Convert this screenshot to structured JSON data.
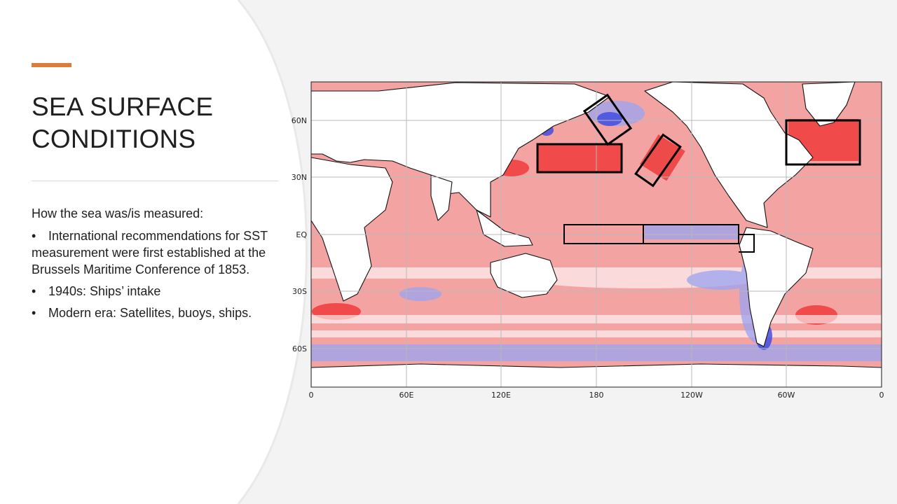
{
  "slide": {
    "title_lines": [
      "SEA SURFACE",
      "CONDITIONS"
    ],
    "intro": "How the sea was/is measured:",
    "bullets": [
      "International recommendations for SST measurement were first established at the Brussels Maritime Conference of 1853.",
      "1940s: Ships’ intake",
      "Modern era: Satellites, buoys, ships."
    ],
    "bullet_symbol": "•",
    "accent_color": "#de7c3a"
  },
  "map": {
    "y_axis_labels": [
      "60N",
      "30N",
      "EQ",
      "30S",
      "60S"
    ],
    "x_axis_labels": [
      "0",
      "60E",
      "120E",
      "180",
      "120W",
      "60W",
      "0"
    ],
    "colors": {
      "warm": "#f4a3a3",
      "warm_strong": "#ef3b3b",
      "cool": "#9aa4f2",
      "cool_strong": "#3b48e0",
      "land": "#ffffff",
      "grid": "#b8b8b8"
    },
    "highlight_boxes": [
      "north-pacific-warm-box",
      "bering-sea-box",
      "gulf-of-alaska-box",
      "north-atlantic-box",
      "nino-equatorial-box"
    ]
  }
}
